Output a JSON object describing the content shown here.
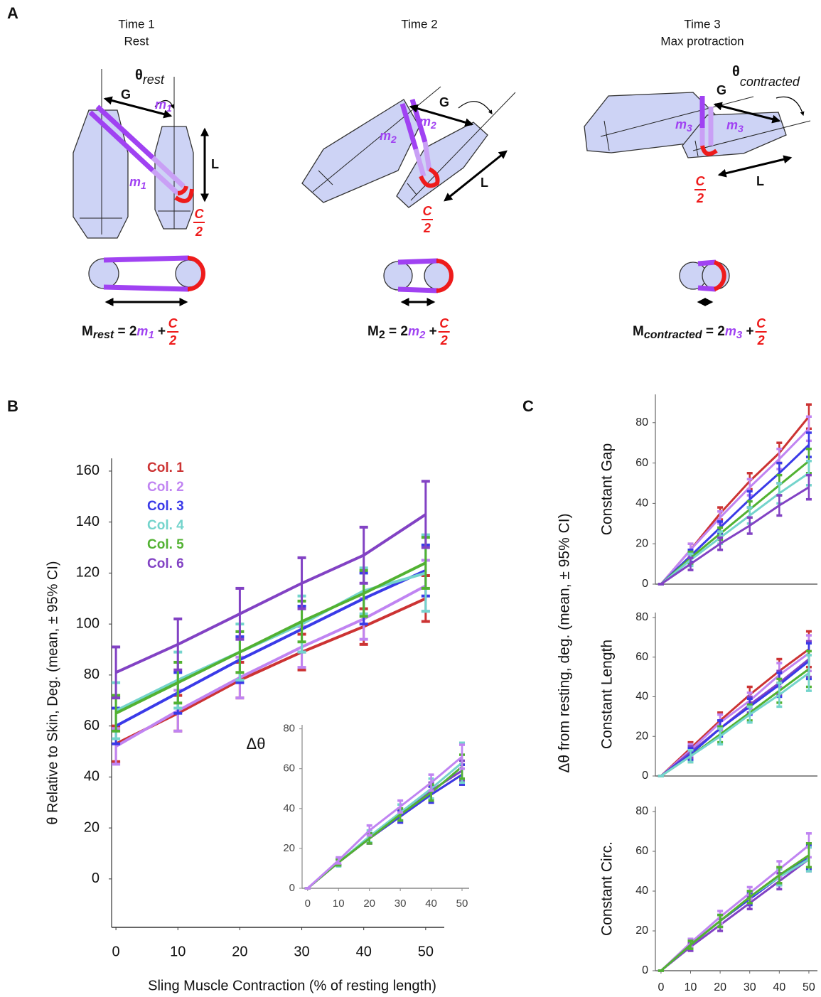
{
  "panel_labels": [
    "A",
    "B",
    "C"
  ],
  "diagram": {
    "panels": [
      {
        "title": "Time 1",
        "subtitle": "Rest",
        "angle": "θ",
        "angle_sub": "rest",
        "gap": "G",
        "length": "L",
        "muscle": "m",
        "muscle_sub": "1",
        "circ_num": "C",
        "circ_den": "2",
        "formula": {
          "lhs": "M",
          "lhs_sub": "rest",
          "eq": " = 2",
          "muscle": "m",
          "muscle_sub": "1",
          "plus": " + ",
          "frac_num": "C",
          "frac_den": "2"
        }
      },
      {
        "title": "Time 2",
        "gap": "G",
        "length": "L",
        "muscle": "m",
        "muscle_sub": "2",
        "circ_num": "C",
        "circ_den": "2",
        "formula": {
          "lhs": "M",
          "lhs_sub": "2",
          "eq": " = 2",
          "muscle": "m",
          "muscle_sub": "2",
          "plus": " + ",
          "frac_num": "C",
          "frac_den": "2"
        }
      },
      {
        "title": "Time 3",
        "subtitle": "Max protraction",
        "angle": "θ",
        "angle_sub": "contracted",
        "gap": "G",
        "length": "L",
        "muscle": "m",
        "muscle_sub": "3",
        "circ_num": "C",
        "circ_den": "2",
        "formula": {
          "lhs": "M",
          "lhs_sub": "contracted",
          "eq": " = 2",
          "muscle": "m",
          "muscle_sub": "3",
          "plus": " + ",
          "frac_num": "C",
          "frac_den": "2"
        }
      }
    ]
  },
  "c_ylabel": "Δθ from resting, deg. (mean, ± 95% CI)",
  "chart_data": [
    {
      "type": "line",
      "ylabel": "θ Relative to Skin, Deg. (mean, ± 95% CI)",
      "xlabel": "Sling Muscle Contraction (% of resting length)",
      "x": [
        0,
        10,
        20,
        30,
        40,
        50
      ],
      "xlim": [
        -0.7,
        53
      ],
      "ylim": [
        -19,
        165
      ],
      "xticks": [
        0,
        10,
        20,
        30,
        40,
        50
      ],
      "yticks": [
        0,
        20,
        40,
        60,
        80,
        100,
        120,
        140,
        160
      ],
      "grid": false,
      "legend": "upper left",
      "series": [
        {
          "name": "Col. 1",
          "color": "#cc3333",
          "values": [
            53,
            65,
            78,
            89,
            99,
            110
          ],
          "errors": [
            7,
            7,
            7,
            7,
            7,
            9
          ]
        },
        {
          "name": "Col. 2",
          "color": "#c084f2",
          "values": [
            52,
            66,
            79,
            91,
            102,
            115
          ],
          "errors": [
            7,
            8,
            8,
            8,
            8,
            10
          ]
        },
        {
          "name": "Col. 3",
          "color": "#3a3ae8",
          "values": [
            60,
            73,
            86,
            98,
            110,
            121
          ],
          "errors": [
            7,
            8,
            9,
            9,
            10,
            10
          ]
        },
        {
          "name": "Col. 4",
          "color": "#74d4cc",
          "values": [
            66,
            78,
            89,
            100,
            113,
            120
          ],
          "errors": [
            11,
            11,
            11,
            11,
            9,
            15
          ]
        },
        {
          "name": "Col. 5",
          "color": "#52b232",
          "values": [
            65,
            77,
            89,
            101,
            112,
            124
          ],
          "errors": [
            7,
            8,
            8,
            8,
            9,
            10
          ]
        },
        {
          "name": "Col. 6",
          "color": "#8242c4",
          "values": [
            81,
            92,
            104,
            116,
            127,
            143
          ],
          "errors": [
            10,
            10,
            10,
            10,
            11,
            13
          ]
        }
      ]
    },
    {
      "type": "line",
      "ylabel": "Δθ",
      "x": [
        0,
        10,
        20,
        30,
        40,
        50
      ],
      "xlim": [
        -1.8,
        52.3
      ],
      "ylim": [
        0,
        82
      ],
      "xticks": [
        0,
        10,
        20,
        30,
        40,
        50
      ],
      "yticks": [
        0,
        20,
        40,
        60,
        80
      ],
      "grid": false,
      "series": [
        {
          "color": "#cc3333",
          "values": [
            0,
            13,
            25,
            36,
            47,
            57
          ],
          "errors": [
            0,
            1.5,
            2.5,
            3,
            4,
            5
          ]
        },
        {
          "color": "#3a3ae8",
          "values": [
            0,
            13,
            25,
            36,
            47,
            57
          ],
          "errors": [
            0,
            1.5,
            2.5,
            3,
            4,
            5
          ]
        },
        {
          "color": "#8242c4",
          "values": [
            0,
            13,
            25,
            37,
            49,
            59
          ],
          "errors": [
            0,
            1.5,
            2.5,
            3,
            4,
            5
          ]
        },
        {
          "color": "#74d4cc",
          "values": [
            0,
            13,
            26,
            38,
            50,
            63
          ],
          "errors": [
            0,
            2,
            3,
            4,
            5,
            10
          ]
        },
        {
          "color": "#52b232",
          "values": [
            0,
            13,
            25,
            37,
            48,
            61
          ],
          "errors": [
            0,
            1.5,
            2.5,
            3,
            4,
            6
          ]
        },
        {
          "color": "#c084f2",
          "values": [
            0,
            14,
            29,
            41,
            53,
            66
          ],
          "errors": [
            0,
            1.5,
            2.5,
            3,
            4,
            6
          ]
        }
      ]
    },
    {
      "type": "line",
      "ylabel": "Constant Gap",
      "x": [
        0,
        10,
        20,
        30,
        40,
        50
      ],
      "xlim": [
        -1.9,
        52.9
      ],
      "ylim": [
        0,
        94
      ],
      "yticks": [
        0,
        20,
        40,
        60,
        80
      ],
      "grid": false,
      "series": [
        {
          "color": "#cc3333",
          "values": [
            0,
            17,
            35,
            51,
            65,
            83
          ],
          "errors": [
            0,
            3,
            3,
            4,
            5,
            6
          ]
        },
        {
          "color": "#c084f2",
          "values": [
            0,
            17,
            33,
            48,
            62,
            77
          ],
          "errors": [
            0,
            3,
            3,
            4,
            5,
            6
          ]
        },
        {
          "color": "#3a3ae8",
          "values": [
            0,
            14,
            28,
            42,
            55,
            69
          ],
          "errors": [
            0,
            3,
            3,
            4,
            5,
            6
          ]
        },
        {
          "color": "#52b232",
          "values": [
            0,
            13,
            25,
            37,
            49,
            61
          ],
          "errors": [
            0,
            3,
            3,
            4,
            5,
            6
          ]
        },
        {
          "color": "#74d4cc",
          "values": [
            0,
            12,
            23,
            34,
            45,
            55
          ],
          "errors": [
            0,
            3,
            3,
            4,
            5,
            6
          ]
        },
        {
          "color": "#8242c4",
          "values": [
            0,
            10,
            20,
            29,
            39,
            48
          ],
          "errors": [
            0,
            3,
            3,
            4,
            5,
            6
          ]
        }
      ]
    },
    {
      "type": "line",
      "ylabel": "Constant Length",
      "x": [
        0,
        10,
        20,
        30,
        40,
        50
      ],
      "xlim": [
        -1.9,
        52.9
      ],
      "ylim": [
        0,
        82.5
      ],
      "yticks": [
        0,
        20,
        40,
        60,
        80
      ],
      "grid": false,
      "series": [
        {
          "color": "#cc3333",
          "values": [
            0,
            14,
            28,
            41,
            53,
            64
          ],
          "errors": [
            0,
            3,
            4,
            4,
            6,
            9
          ]
        },
        {
          "color": "#c084f2",
          "values": [
            0,
            13,
            27,
            38,
            51,
            62
          ],
          "errors": [
            0,
            3,
            4,
            4,
            6,
            9
          ]
        },
        {
          "color": "#8242c4",
          "values": [
            0,
            12,
            24,
            36,
            47,
            59
          ],
          "errors": [
            0,
            3,
            4,
            4,
            6,
            9
          ]
        },
        {
          "color": "#3a3ae8",
          "values": [
            0,
            11,
            24,
            35,
            46,
            58
          ],
          "errors": [
            0,
            3,
            4,
            4,
            6,
            9
          ]
        },
        {
          "color": "#52b232",
          "values": [
            0,
            10,
            21,
            32,
            43,
            54
          ],
          "errors": [
            0,
            3,
            4,
            4,
            6,
            9
          ]
        },
        {
          "color": "#74d4cc",
          "values": [
            0,
            10,
            20,
            31,
            41,
            52
          ],
          "errors": [
            0,
            3,
            4,
            4,
            6,
            9
          ]
        }
      ]
    },
    {
      "type": "line",
      "ylabel": "Constant Circ.",
      "x": [
        0,
        10,
        20,
        30,
        40,
        50
      ],
      "xlim": [
        -1.9,
        52.9
      ],
      "ylim": [
        0,
        82.5
      ],
      "xticks": [
        0,
        10,
        20,
        30,
        40,
        50
      ],
      "yticks": [
        0,
        20,
        40,
        60,
        80
      ],
      "grid": false,
      "series": [
        {
          "color": "#cc3333",
          "values": [
            0,
            13,
            25,
            37,
            48,
            58
          ],
          "errors": [
            0,
            2,
            3,
            3,
            4,
            6
          ]
        },
        {
          "color": "#3a3ae8",
          "values": [
            0,
            13,
            25,
            36,
            47,
            57
          ],
          "errors": [
            0,
            2,
            3,
            3,
            4,
            6
          ]
        },
        {
          "color": "#8242c4",
          "values": [
            0,
            12,
            23,
            34,
            45,
            56
          ],
          "errors": [
            0,
            2,
            3,
            3,
            4,
            6
          ]
        },
        {
          "color": "#74d4cc",
          "values": [
            0,
            13,
            25,
            37,
            47,
            56
          ],
          "errors": [
            0,
            2,
            3,
            3,
            4,
            6
          ]
        },
        {
          "color": "#c084f2",
          "values": [
            0,
            14,
            27,
            39,
            51,
            63
          ],
          "errors": [
            0,
            2,
            3,
            3,
            4,
            6
          ]
        },
        {
          "color": "#52b232",
          "values": [
            0,
            13,
            25,
            37,
            48,
            58
          ],
          "errors": [
            0,
            2,
            3,
            3,
            4,
            6
          ]
        }
      ]
    }
  ]
}
